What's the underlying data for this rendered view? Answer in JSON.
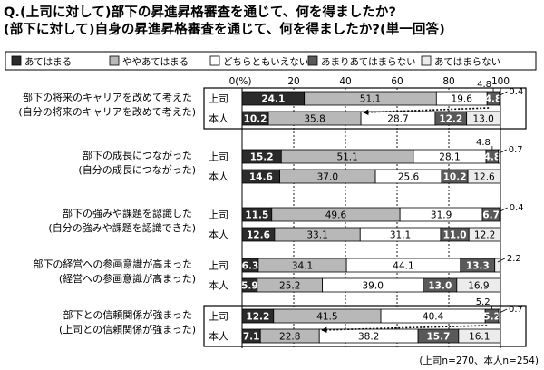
{
  "question": {
    "line1": "Q.(上司に対して)部下の昇進昇格審査を通じて、何を得ましたか?",
    "line2": "(部下に対して)自身の昇進昇格審査を通じて、何を得ましたか?(単一回答)"
  },
  "legend": [
    "あてはまる",
    "ややあてはまる",
    "どちらともいえない",
    "あまりあてはまらない",
    "あてはまらない"
  ],
  "colors": {
    "answers": [
      "#2b2b2b",
      "#b8b8b8",
      "#ffffff",
      "#595959",
      "#ececec"
    ],
    "light_text": "#ffffff",
    "dark_text": "#000000"
  },
  "axis": {
    "unit_label": "0(%)",
    "ticks": [
      "20",
      "40",
      "60",
      "80",
      "100"
    ]
  },
  "footnote": "(上司n=270、本人n=254)",
  "chart_data": {
    "type": "bar",
    "stacked": true,
    "orientation": "horizontal",
    "xlim": [
      0,
      100
    ],
    "grid": true,
    "legend_position": "top",
    "series_names": [
      "あてはまる",
      "ややあてはまる",
      "どちらともいえない",
      "あまりあてはまらない",
      "あてはまらない"
    ],
    "groups": [
      {
        "label1": "部下の将来のキャリアを改めて考えた",
        "label2": "(自分の将来のキャリアを改めて考えた)",
        "highlight": true,
        "rows": [
          {
            "name": "上司",
            "values": [
              24.1,
              51.1,
              19.6,
              4.8,
              0.4
            ]
          },
          {
            "name": "本人",
            "values": [
              10.2,
              35.8,
              28.7,
              12.2,
              13.0
            ]
          }
        ]
      },
      {
        "label1": "部下の成長につながった",
        "label2": "(自分の成長につながった)",
        "highlight": false,
        "rows": [
          {
            "name": "上司",
            "values": [
              15.2,
              51.1,
              28.1,
              4.8,
              0.7
            ]
          },
          {
            "name": "本人",
            "values": [
              14.6,
              37.0,
              25.6,
              10.2,
              12.6
            ]
          }
        ]
      },
      {
        "label1": "部下の強みや課題を認識した",
        "label2": "(自分の強みや課題を認識できた)",
        "highlight": false,
        "rows": [
          {
            "name": "上司",
            "values": [
              11.5,
              49.6,
              31.9,
              6.7,
              0.4
            ]
          },
          {
            "name": "本人",
            "values": [
              12.6,
              33.1,
              31.1,
              11.0,
              12.2
            ]
          }
        ]
      },
      {
        "label1": "部下の経営への参画意識が高まった",
        "label2": "(経営への参画意識が高まった)",
        "highlight": false,
        "rows": [
          {
            "name": "上司",
            "values": [
              6.3,
              34.1,
              44.1,
              13.3,
              2.2
            ]
          },
          {
            "name": "本人",
            "values": [
              5.9,
              25.2,
              39.0,
              13.0,
              16.9
            ]
          }
        ]
      },
      {
        "label1": "部下との信頼関係が強まった",
        "label2": "(上司との信頼関係が強まった)",
        "highlight": true,
        "rows": [
          {
            "name": "上司",
            "values": [
              12.2,
              41.5,
              40.4,
              5.2,
              0.7
            ]
          },
          {
            "name": "本人",
            "values": [
              7.1,
              22.8,
              38.2,
              15.7,
              16.1
            ]
          }
        ]
      }
    ]
  }
}
